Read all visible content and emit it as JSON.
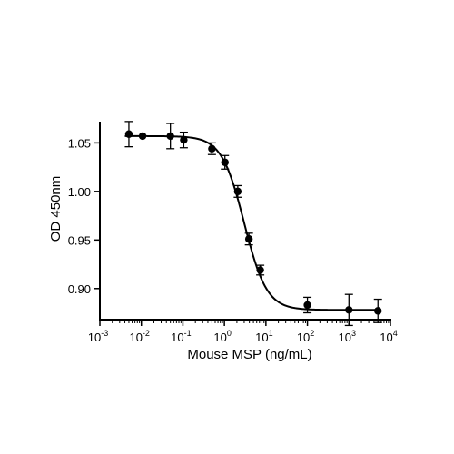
{
  "chart_data": {
    "type": "scatter",
    "title": "",
    "xlabel": "Mouse MSP (ng/mL)",
    "ylabel": "OD 450nm",
    "x_scale": "log",
    "xlim": [
      0.001,
      10000
    ],
    "ylim": [
      0.868,
      1.07
    ],
    "x_ticks": [
      {
        "value": 0.001,
        "base": "10",
        "exp": "-3"
      },
      {
        "value": 0.01,
        "base": "10",
        "exp": "-2"
      },
      {
        "value": 0.1,
        "base": "10",
        "exp": "-1"
      },
      {
        "value": 1,
        "base": "10",
        "exp": "0"
      },
      {
        "value": 10,
        "base": "10",
        "exp": "1"
      },
      {
        "value": 100,
        "base": "10",
        "exp": "2"
      },
      {
        "value": 1000,
        "base": "10",
        "exp": "3"
      },
      {
        "value": 10000,
        "base": "10",
        "exp": "4"
      }
    ],
    "y_ticks": [
      {
        "value": 0.9,
        "label": "0.90"
      },
      {
        "value": 0.95,
        "label": "0.95"
      },
      {
        "value": 1.0,
        "label": "1.00"
      },
      {
        "value": 1.05,
        "label": "1.05"
      }
    ],
    "grid": false,
    "points": [
      {
        "x": 0.005,
        "y": 1.059,
        "err": 0.013
      },
      {
        "x": 0.0107,
        "y": 1.057,
        "err": 0.0
      },
      {
        "x": 0.05,
        "y": 1.057,
        "err": 0.013
      },
      {
        "x": 0.105,
        "y": 1.053,
        "err": 0.008
      },
      {
        "x": 0.5,
        "y": 1.044,
        "err": 0.006
      },
      {
        "x": 1.03,
        "y": 1.03,
        "err": 0.007
      },
      {
        "x": 2.1,
        "y": 1.0,
        "err": 0.006
      },
      {
        "x": 3.9,
        "y": 0.951,
        "err": 0.006
      },
      {
        "x": 7.3,
        "y": 0.919,
        "err": 0.005
      },
      {
        "x": 100,
        "y": 0.883,
        "err": 0.008
      },
      {
        "x": 1000,
        "y": 0.878,
        "err": 0.016
      },
      {
        "x": 5000,
        "y": 0.877,
        "err": 0.012
      }
    ],
    "fit_curve": {
      "top": 1.057,
      "bottom": 0.878,
      "ec50": 3.0,
      "hill": 1.6
    },
    "colors": {
      "points": "#000000",
      "curve": "#000000",
      "axes": "#000000"
    }
  }
}
